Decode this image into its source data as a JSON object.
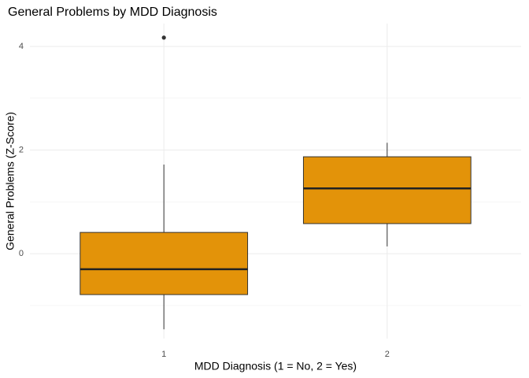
{
  "chart_data": {
    "type": "box",
    "title": "General Problems by MDD Diagnosis",
    "x_label": "MDD Diagnosis (1 = No, 2 = Yes)",
    "y_label": "General Problems (Z-Score)",
    "categories": [
      "1",
      "2"
    ],
    "boxes": [
      {
        "whislo": -1.46,
        "q1": -0.79,
        "median": -0.3,
        "q3": 0.41,
        "whishi": 1.72,
        "fliers": [
          4.17
        ]
      },
      {
        "whislo": 0.14,
        "q1": 0.58,
        "median": 1.26,
        "q3": 1.87,
        "whishi": 2.14,
        "fliers": []
      }
    ],
    "color": "#e39309",
    "ylim": [
      -1.64,
      4.44
    ],
    "yticks": [
      0,
      2,
      4
    ],
    "grid": true
  }
}
